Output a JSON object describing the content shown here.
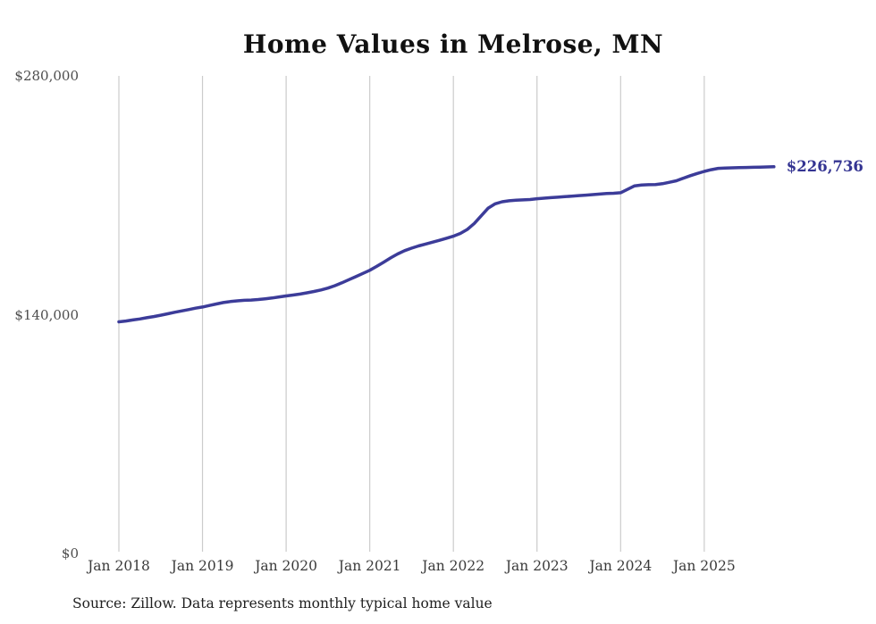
{
  "title": "Home Values in Melrose, MN",
  "source_note": "Source: Zillow. Data represents monthly typical home value",
  "end_label": "$226,736",
  "colors": {
    "line": "#3c3c99",
    "end_label": "#343492",
    "gridline": "#cbcbcb",
    "y_axis_text": "#4d4d4d",
    "x_axis_text": "#3a3a3a",
    "title_text": "#111111",
    "source_text": "#1f1f1f",
    "background": "#ffffff"
  },
  "y_axis": {
    "ticks": [
      {
        "label": "$0",
        "value": 0
      },
      {
        "label": "$140,000",
        "value": 140000
      },
      {
        "label": "$280,000",
        "value": 280000
      }
    ],
    "max": 280000
  },
  "x_axis": {
    "ticks": [
      {
        "label": "Jan 2018",
        "month_index": 0
      },
      {
        "label": "Jan 2019",
        "month_index": 12
      },
      {
        "label": "Jan 2020",
        "month_index": 24
      },
      {
        "label": "Jan 2021",
        "month_index": 36
      },
      {
        "label": "Jan 2022",
        "month_index": 48
      },
      {
        "label": "Jan 2023",
        "month_index": 60
      },
      {
        "label": "Jan 2024",
        "month_index": 72
      },
      {
        "label": "Jan 2025",
        "month_index": 84
      }
    ]
  },
  "chart_data": {
    "type": "line",
    "title": "Home Values in Melrose, MN",
    "series_name": "Monthly typical home value",
    "xlabel": "",
    "ylabel": "",
    "ylim": [
      0,
      280000
    ],
    "y_tick_labels": [
      "$0",
      "$140,000",
      "$280,000"
    ],
    "x_tick_labels": [
      "Jan 2018",
      "Jan 2019",
      "Jan 2020",
      "Jan 2021",
      "Jan 2022",
      "Jan 2023",
      "Jan 2024",
      "Jan 2025"
    ],
    "grid": "vertical",
    "legend": "none",
    "last_value_label": "$226,736",
    "x": [
      "2018-01",
      "2018-02",
      "2018-03",
      "2018-04",
      "2018-05",
      "2018-06",
      "2018-07",
      "2018-08",
      "2018-09",
      "2018-10",
      "2018-11",
      "2018-12",
      "2019-01",
      "2019-02",
      "2019-03",
      "2019-04",
      "2019-05",
      "2019-06",
      "2019-07",
      "2019-08",
      "2019-09",
      "2019-10",
      "2019-11",
      "2019-12",
      "2020-01",
      "2020-02",
      "2020-03",
      "2020-04",
      "2020-05",
      "2020-06",
      "2020-07",
      "2020-08",
      "2020-09",
      "2020-10",
      "2020-11",
      "2020-12",
      "2021-01",
      "2021-02",
      "2021-03",
      "2021-04",
      "2021-05",
      "2021-06",
      "2021-07",
      "2021-08",
      "2021-09",
      "2021-10",
      "2021-11",
      "2021-12",
      "2022-01",
      "2022-02",
      "2022-03",
      "2022-04",
      "2022-05",
      "2022-06",
      "2022-07",
      "2022-08",
      "2022-09",
      "2022-10",
      "2022-11",
      "2022-12",
      "2023-01",
      "2023-02",
      "2023-03",
      "2023-04",
      "2023-05",
      "2023-06",
      "2023-07",
      "2023-08",
      "2023-09",
      "2023-10",
      "2023-11",
      "2023-12",
      "2024-01",
      "2024-02",
      "2024-03",
      "2024-04",
      "2024-05",
      "2024-06",
      "2024-07",
      "2024-08",
      "2024-09",
      "2024-10",
      "2024-11",
      "2024-12",
      "2025-01",
      "2025-02",
      "2025-03",
      "2025-04",
      "2025-05",
      "2025-06",
      "2025-07",
      "2025-08",
      "2025-09",
      "2025-10",
      "2025-11"
    ],
    "values": [
      135800,
      136300,
      136900,
      137500,
      138200,
      138900,
      139700,
      140500,
      141400,
      142200,
      143000,
      143800,
      144500,
      145400,
      146300,
      147100,
      147700,
      148100,
      148400,
      148600,
      148900,
      149300,
      149800,
      150400,
      151000,
      151500,
      152100,
      152800,
      153600,
      154500,
      155600,
      157000,
      158700,
      160500,
      162300,
      164200,
      166000,
      168300,
      170800,
      173300,
      175600,
      177500,
      179000,
      180300,
      181400,
      182500,
      183600,
      184800,
      186000,
      187600,
      190000,
      193500,
      198000,
      202500,
      205000,
      206200,
      206800,
      207100,
      207300,
      207500,
      208000,
      208300,
      208600,
      208900,
      209200,
      209500,
      209800,
      210100,
      210400,
      210700,
      211000,
      211200,
      211500,
      213500,
      215500,
      216000,
      216200,
      216300,
      216800,
      217600,
      218500,
      220000,
      221500,
      222800,
      224000,
      225000,
      225800,
      226000,
      226100,
      226200,
      226300,
      226400,
      226500,
      226600,
      226736
    ]
  }
}
